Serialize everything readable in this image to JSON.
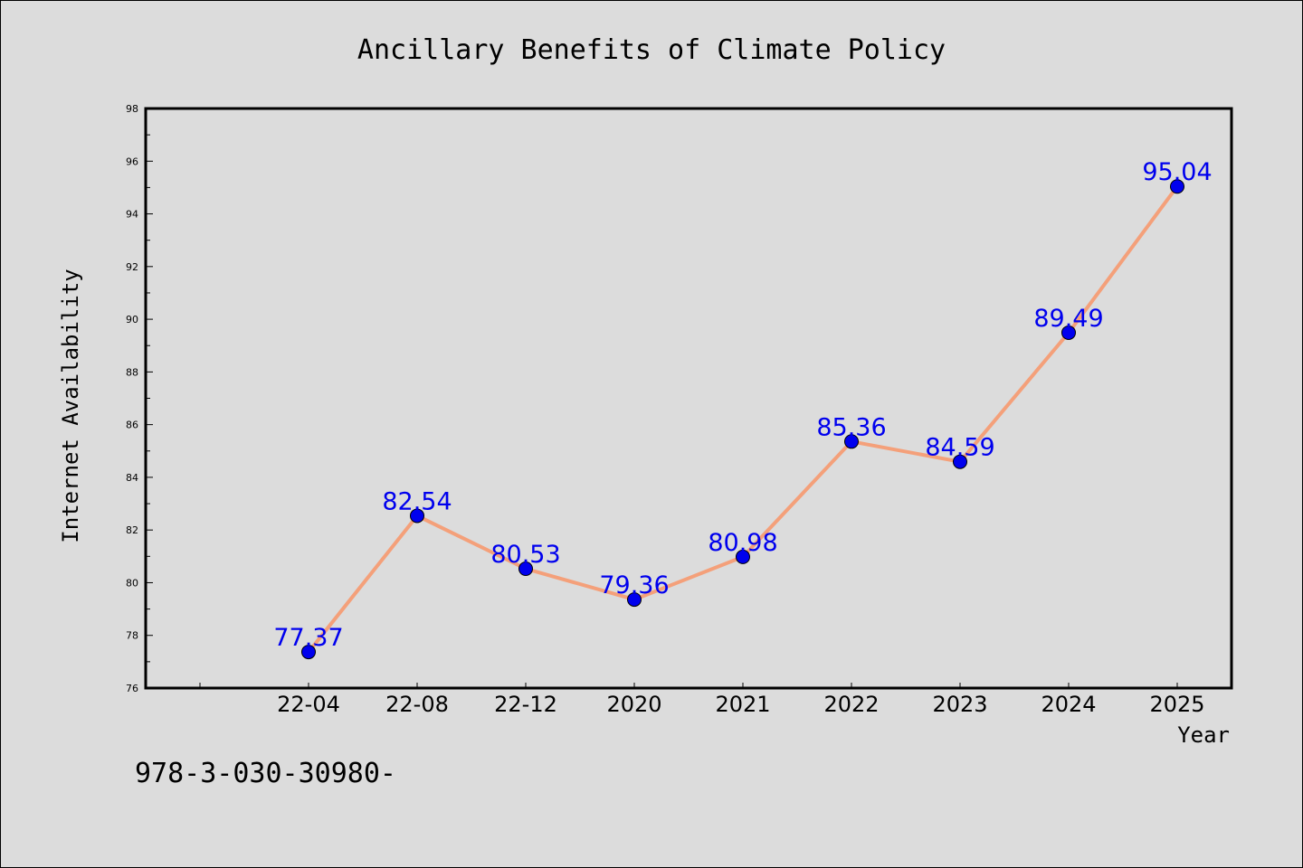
{
  "chart_data": {
    "type": "line",
    "title": "Ancillary Benefits of Climate Policy",
    "xlabel": "Year",
    "ylabel": "Internet Availability",
    "categories": [
      "22-04",
      "22-08",
      "22-12",
      "2020",
      "2021",
      "2022",
      "2023",
      "2024",
      "2025"
    ],
    "series": [
      {
        "values": [
          77.37,
          82.54,
          80.53,
          79.36,
          80.98,
          85.36,
          84.59,
          89.49,
          95.04
        ],
        "labels": [
          "77.37",
          "82.54",
          "80.53",
          "79.36",
          "80.98",
          "85.36",
          "84.59",
          "89.49",
          "95.04"
        ]
      }
    ],
    "ylim": [
      76,
      98
    ],
    "yticks": [
      "76",
      "78",
      "80",
      "82",
      "84",
      "86",
      "88",
      "90",
      "92",
      "94",
      "96",
      "98"
    ],
    "grid": false,
    "line_color": "#f4a07a",
    "marker_color": "#0000ee",
    "label_color": "#0000ee",
    "background_color": "#dcdcdc"
  },
  "footer": {
    "code": "978-3-030-30980-"
  }
}
